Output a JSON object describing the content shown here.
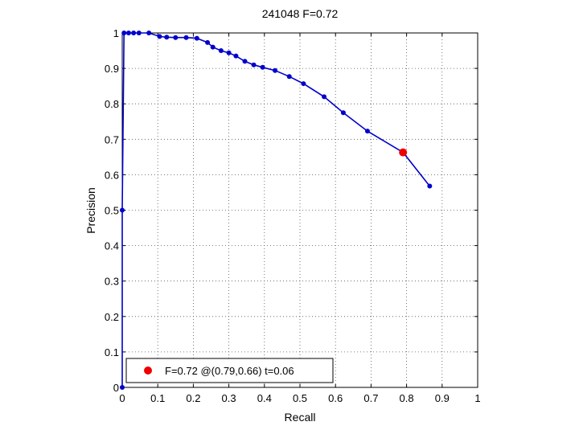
{
  "chart_data": {
    "type": "line",
    "title": "241048 F=0.72",
    "xlabel": "Recall",
    "ylabel": "Precision",
    "xlim": [
      0,
      1
    ],
    "ylim": [
      0,
      1
    ],
    "xticks": [
      "0",
      "0.1",
      "0.2",
      "0.3",
      "0.4",
      "0.5",
      "0.6",
      "0.7",
      "0.8",
      "0.9",
      "1"
    ],
    "yticks": [
      "0",
      "0.1",
      "0.2",
      "0.3",
      "0.4",
      "0.5",
      "0.6",
      "0.7",
      "0.8",
      "0.9",
      "1"
    ],
    "grid": true,
    "line_color": "#0000cc",
    "series": [
      {
        "points": [
          [
            0.0,
            0.0
          ],
          [
            0.0,
            0.5
          ],
          [
            0.005,
            1.0
          ],
          [
            0.018,
            1.0
          ],
          [
            0.032,
            1.0
          ],
          [
            0.047,
            1.0
          ],
          [
            0.075,
            1.0
          ],
          [
            0.105,
            0.99
          ],
          [
            0.125,
            0.988
          ],
          [
            0.15,
            0.987
          ],
          [
            0.18,
            0.987
          ],
          [
            0.21,
            0.985
          ],
          [
            0.24,
            0.973
          ],
          [
            0.255,
            0.96
          ],
          [
            0.278,
            0.95
          ],
          [
            0.3,
            0.944
          ],
          [
            0.32,
            0.935
          ],
          [
            0.345,
            0.92
          ],
          [
            0.37,
            0.91
          ],
          [
            0.395,
            0.903
          ],
          [
            0.43,
            0.894
          ],
          [
            0.47,
            0.877
          ],
          [
            0.51,
            0.857
          ],
          [
            0.568,
            0.82
          ],
          [
            0.622,
            0.775
          ],
          [
            0.69,
            0.723
          ],
          [
            0.79,
            0.663
          ],
          [
            0.865,
            0.568
          ]
        ]
      }
    ],
    "highlight": {
      "x": 0.79,
      "y": 0.663,
      "color": "#ee0000"
    },
    "legend": {
      "placement": "bottom-left",
      "text": "F=0.72 @(0.79,0.66) t=0.06"
    }
  }
}
